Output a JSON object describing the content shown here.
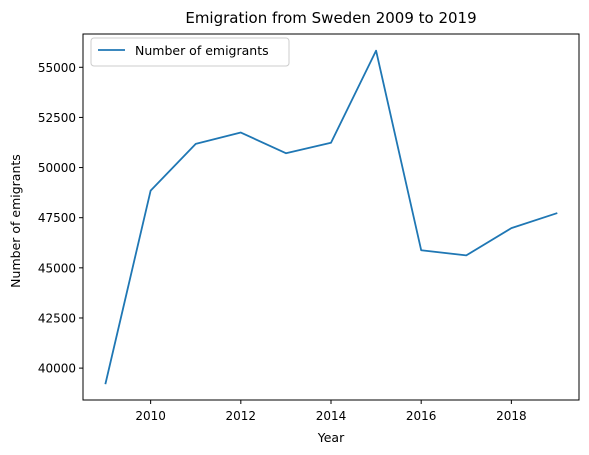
{
  "chart_data": {
    "type": "line",
    "title": "Emigration from Sweden 2009 to 2019",
    "xlabel": "Year",
    "ylabel": "Number of emigrants",
    "x": [
      2009,
      2010,
      2011,
      2012,
      2013,
      2014,
      2015,
      2016,
      2017,
      2018,
      2019
    ],
    "series": [
      {
        "name": "Number of emigrants",
        "color": "#1f77b4",
        "values": [
          39240,
          48853,
          51179,
          51747,
          50715,
          51237,
          55830,
          45878,
          45620,
          46981,
          47718
        ]
      }
    ],
    "xlim": [
      2008.5,
      2019.5
    ],
    "ylim": [
      38410,
      56660
    ],
    "xticks": [
      2010,
      2012,
      2014,
      2016,
      2018
    ],
    "yticks": [
      40000,
      42500,
      45000,
      47500,
      50000,
      52500,
      55000
    ],
    "grid": false,
    "legend": "upper-left"
  }
}
